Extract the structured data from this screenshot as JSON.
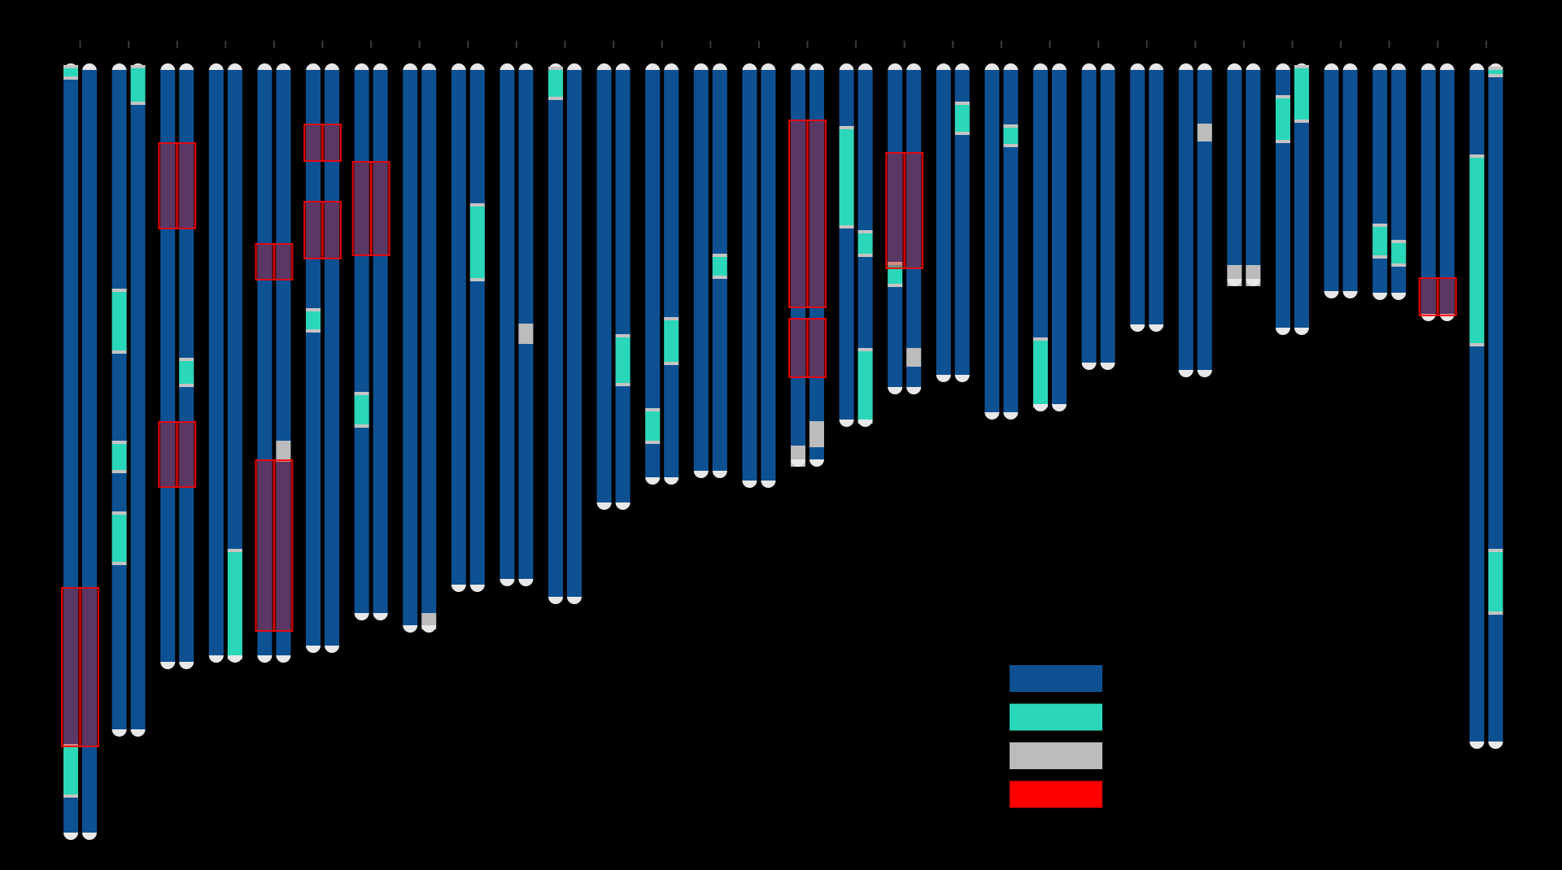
{
  "colors": {
    "background": "#000000",
    "chromosome_body": "#0e5193",
    "homozygous": "#2ad7b8",
    "unassigned": "#bcbcbc",
    "roh": "#ff0000",
    "boundary": "#c4c4c4",
    "tip": "#e8e8e8",
    "tick": "#3a3a3a"
  },
  "icons": {
    "chromosome": "chromosome-pair-icon",
    "legend_swatch": "color-swatch-icon"
  },
  "legend": [
    {
      "key": "body",
      "color": "#0e5193"
    },
    {
      "key": "homozygous",
      "color": "#2ad7b8"
    },
    {
      "key": "unassigned",
      "color": "#bcbcbc"
    },
    {
      "key": "roh",
      "color": "#ff0000"
    }
  ],
  "chromosomes": [
    {
      "length": 955,
      "left": {
        "features": [
          {
            "type": "teal",
            "start": 5,
            "end": 17
          },
          {
            "type": "teal",
            "start": 840,
            "end": 900
          }
        ]
      },
      "right": {
        "features": []
      },
      "red": [
        {
          "start": 645,
          "end": 840
        }
      ]
    },
    {
      "length": 828,
      "left": {
        "features": [
          {
            "type": "teal",
            "start": 280,
            "end": 354
          },
          {
            "type": "teal",
            "start": 467,
            "end": 501
          },
          {
            "type": "teal",
            "start": 554,
            "end": 614
          }
        ]
      },
      "right": {
        "features": [
          {
            "type": "teal",
            "start": 5,
            "end": 48
          }
        ]
      },
      "red": []
    },
    {
      "length": 745,
      "left": {
        "features": []
      },
      "right": {
        "features": [
          {
            "type": "teal",
            "start": 365,
            "end": 395
          }
        ]
      },
      "red": [
        {
          "start": 98,
          "end": 203
        },
        {
          "start": 441,
          "end": 521
        }
      ]
    },
    {
      "length": 737,
      "left": {
        "features": []
      },
      "right": {
        "features": [
          {
            "type": "teal",
            "start": 600,
            "end": 730
          }
        ]
      },
      "red": []
    },
    {
      "length": 737,
      "left": {
        "features": []
      },
      "right": {
        "features": [
          {
            "type": "grey",
            "start": 464,
            "end": 490
          }
        ]
      },
      "red": [
        {
          "start": 222,
          "end": 266
        },
        {
          "start": 488,
          "end": 698
        }
      ]
    },
    {
      "length": 725,
      "left": {
        "features": [
          {
            "type": "teal",
            "start": 304,
            "end": 328
          }
        ]
      },
      "right": {
        "features": []
      },
      "red": [
        {
          "start": 75,
          "end": 120
        },
        {
          "start": 170,
          "end": 240
        }
      ]
    },
    {
      "length": 685,
      "left": {
        "features": [
          {
            "type": "teal",
            "start": 407,
            "end": 445
          }
        ]
      },
      "right": {
        "features": []
      },
      "red": [
        {
          "start": 121,
          "end": 236
        }
      ]
    },
    {
      "length": 700,
      "left": {
        "features": []
      },
      "right": {
        "features": [
          {
            "type": "grey",
            "start": 676,
            "end": 696
          }
        ]
      },
      "red": []
    },
    {
      "length": 650,
      "left": {
        "features": []
      },
      "right": {
        "features": [
          {
            "type": "teal",
            "start": 175,
            "end": 265
          }
        ]
      },
      "red": []
    },
    {
      "length": 643,
      "left": {
        "features": []
      },
      "right": {
        "features": [
          {
            "type": "grey",
            "start": 320,
            "end": 345
          }
        ]
      },
      "red": []
    },
    {
      "length": 665,
      "left": {
        "features": [
          {
            "type": "teal",
            "start": 7,
            "end": 42
          }
        ]
      },
      "right": {
        "features": []
      },
      "red": []
    },
    {
      "length": 549,
      "left": {
        "features": []
      },
      "right": {
        "features": [
          {
            "type": "teal",
            "start": 336,
            "end": 394
          }
        ]
      },
      "red": []
    },
    {
      "length": 518,
      "left": {
        "features": [
          {
            "type": "teal",
            "start": 427,
            "end": 465
          }
        ]
      },
      "right": {
        "features": [
          {
            "type": "teal",
            "start": 315,
            "end": 368
          }
        ]
      },
      "red": []
    },
    {
      "length": 510,
      "left": {
        "features": []
      },
      "right": {
        "features": [
          {
            "type": "teal",
            "start": 237,
            "end": 262
          }
        ]
      },
      "red": []
    },
    {
      "length": 522,
      "left": {
        "features": []
      },
      "right": {
        "features": []
      },
      "red": []
    },
    {
      "length": 496,
      "left": {
        "features": [
          {
            "type": "grey",
            "start": 470,
            "end": 496
          }
        ]
      },
      "right": {
        "features": [
          {
            "type": "grey",
            "start": 440,
            "end": 472
          }
        ]
      },
      "red": [
        {
          "start": 70,
          "end": 300
        },
        {
          "start": 314,
          "end": 386
        }
      ]
    },
    {
      "length": 447,
      "left": {
        "features": [
          {
            "type": "teal",
            "start": 80,
            "end": 200
          }
        ]
      },
      "right": {
        "features": [
          {
            "type": "teal",
            "start": 208,
            "end": 235
          },
          {
            "type": "teal",
            "start": 353,
            "end": 440
          }
        ]
      },
      "red": []
    },
    {
      "length": 407,
      "left": {
        "features": [
          {
            "type": "teal",
            "start": 247,
            "end": 272
          }
        ]
      },
      "right": {
        "features": [
          {
            "type": "grey",
            "start": 350,
            "end": 373
          }
        ]
      },
      "red": [
        {
          "start": 110,
          "end": 252
        }
      ]
    },
    {
      "length": 392,
      "left": {
        "features": []
      },
      "right": {
        "features": [
          {
            "type": "teal",
            "start": 50,
            "end": 85
          }
        ]
      },
      "red": []
    },
    {
      "length": 438,
      "left": {
        "features": []
      },
      "right": {
        "features": [
          {
            "type": "teal",
            "start": 78,
            "end": 100
          }
        ]
      },
      "red": []
    },
    {
      "length": 428,
      "left": {
        "features": [
          {
            "type": "teal",
            "start": 340,
            "end": 420
          }
        ]
      },
      "right": {
        "features": []
      },
      "red": []
    },
    {
      "length": 377,
      "left": {
        "features": []
      },
      "right": {
        "features": []
      },
      "red": []
    },
    {
      "length": 330,
      "left": {
        "features": []
      },
      "right": {
        "features": []
      },
      "red": []
    },
    {
      "length": 386,
      "left": {
        "features": []
      },
      "right": {
        "features": [
          {
            "type": "grey",
            "start": 74,
            "end": 96
          }
        ]
      },
      "red": []
    },
    {
      "length": 274,
      "left": {
        "features": [
          {
            "type": "grey",
            "start": 248,
            "end": 274
          }
        ]
      },
      "right": {
        "features": [
          {
            "type": "grey",
            "start": 248,
            "end": 274
          }
        ]
      },
      "red": []
    },
    {
      "length": 334,
      "left": {
        "features": [
          {
            "type": "teal",
            "start": 42,
            "end": 95
          }
        ]
      },
      "right": {
        "features": [
          {
            "type": "teal",
            "start": 5,
            "end": 70
          }
        ]
      },
      "red": []
    },
    {
      "length": 289,
      "left": {
        "features": []
      },
      "right": {
        "features": []
      },
      "red": []
    },
    {
      "length": 291,
      "left": {
        "features": [
          {
            "type": "teal",
            "start": 200,
            "end": 237
          }
        ]
      },
      "right": {
        "features": [
          {
            "type": "teal",
            "start": 220,
            "end": 247
          }
        ]
      },
      "red": []
    },
    {
      "length": 317,
      "left": {
        "features": []
      },
      "right": {
        "features": []
      },
      "red": [
        {
          "start": 264,
          "end": 310
        }
      ]
    },
    {
      "length": 843,
      "left": {
        "features": [
          {
            "type": "teal",
            "start": 115,
            "end": 345
          }
        ]
      },
      "right": {
        "features": [
          {
            "type": "teal",
            "start": 7,
            "end": 14
          },
          {
            "type": "teal",
            "start": 600,
            "end": 675
          }
        ]
      },
      "red": []
    }
  ]
}
